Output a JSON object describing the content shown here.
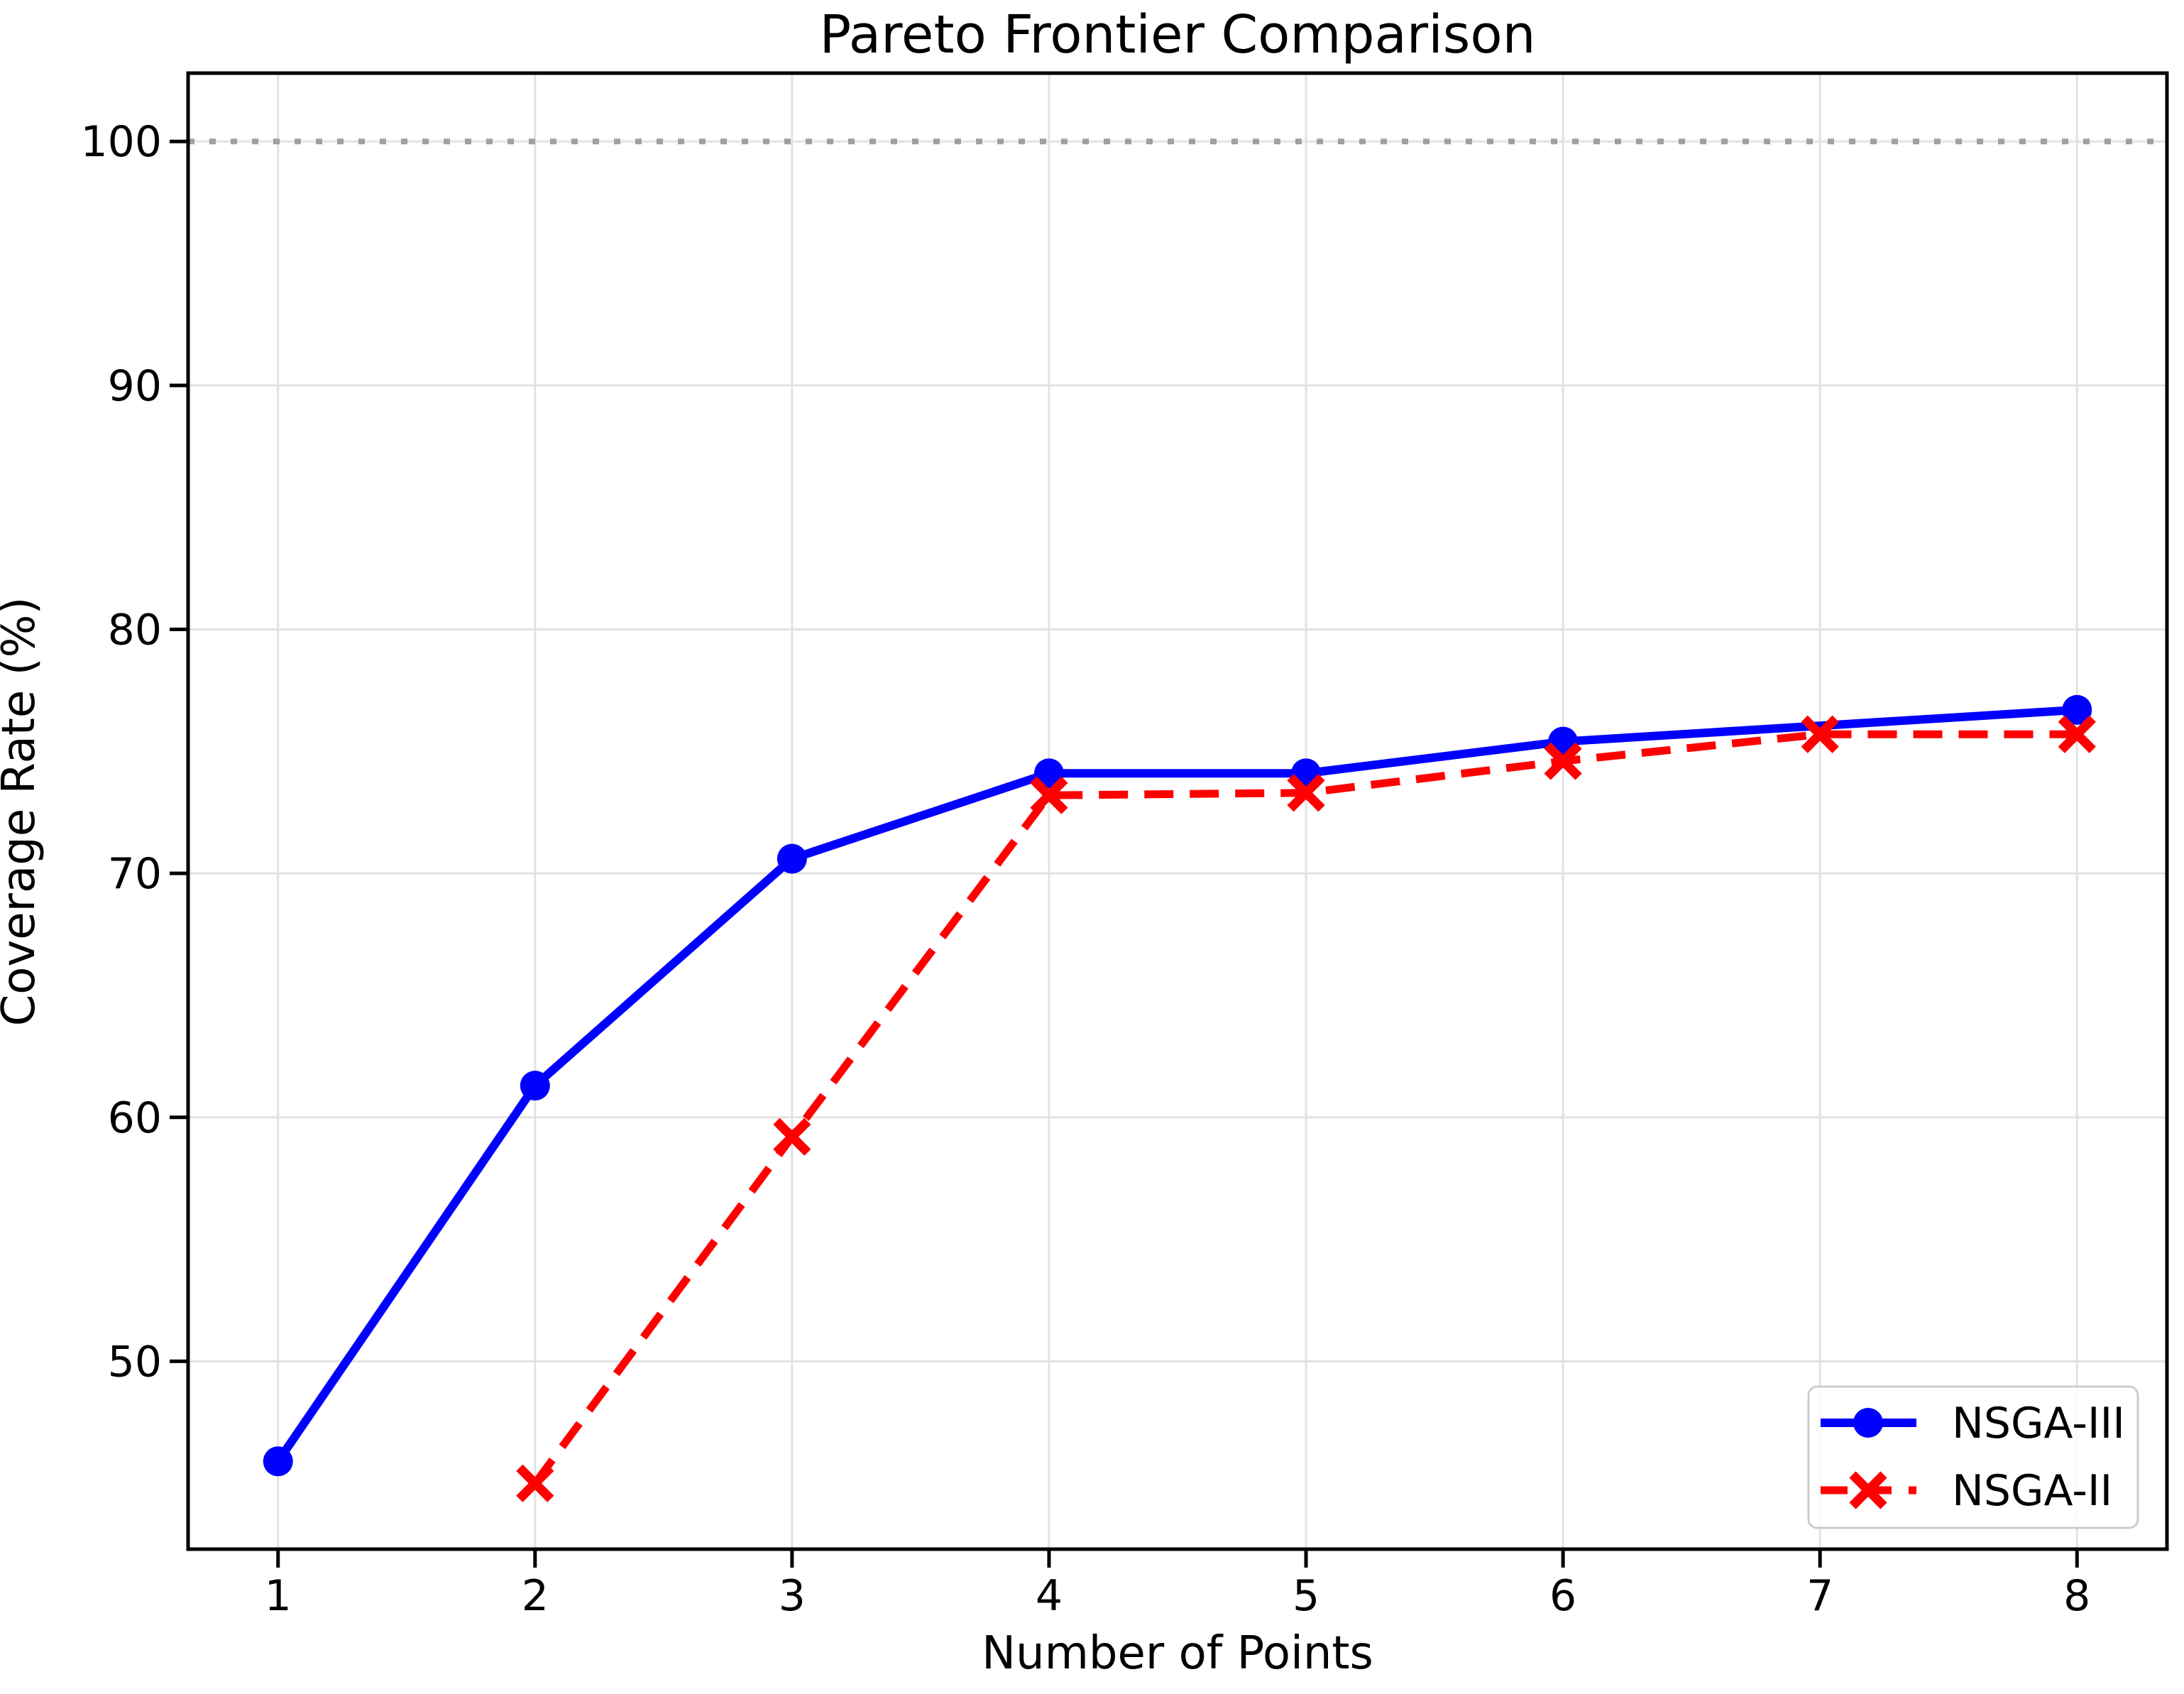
{
  "chart_data": {
    "type": "line",
    "title": "Pareto Frontier Comparison",
    "xlabel": "Number of Points",
    "ylabel": "Coverage Rate (%)",
    "xlim": [
      0.65,
      8.35
    ],
    "ylim": [
      42.3,
      102.8
    ],
    "xticks": [
      1,
      2,
      3,
      4,
      5,
      6,
      7,
      8
    ],
    "yticks": [
      50,
      60,
      70,
      80,
      90,
      100
    ],
    "grid": true,
    "grid_color": "#e2e2e2",
    "background_color": "#ffffff",
    "reference_line": {
      "y": 100,
      "style": "dotted",
      "color": "#a0a0a0"
    },
    "legend": {
      "position": "lower-right",
      "labels": [
        "NSGA-III",
        "NSGA-II"
      ]
    },
    "series": [
      {
        "name": "NSGA-III",
        "color": "#0000ff",
        "line_style": "solid",
        "marker": "circle",
        "x": [
          1,
          2,
          3,
          4,
          5,
          6,
          8
        ],
        "y": [
          45.9,
          61.3,
          70.6,
          74.1,
          74.1,
          75.4,
          76.7
        ]
      },
      {
        "name": "NSGA-II",
        "color": "#ff0000",
        "line_style": "dashed",
        "marker": "x",
        "x": [
          2,
          3,
          4,
          5,
          6,
          7,
          8
        ],
        "y": [
          45.0,
          59.2,
          73.2,
          73.3,
          74.6,
          75.7,
          75.7
        ]
      }
    ]
  }
}
